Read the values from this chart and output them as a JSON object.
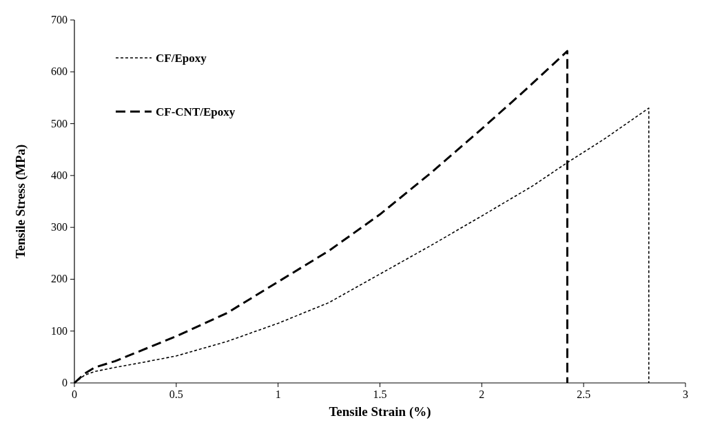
{
  "chart_data": {
    "type": "line",
    "xlabel": "Tensile Strain (%)",
    "ylabel": "Tensile Stress (MPa)",
    "xlim": [
      0,
      3
    ],
    "xticks": [
      0,
      0.5,
      1,
      1.5,
      2,
      2.5,
      3
    ],
    "ylim": [
      0,
      700
    ],
    "yticks": [
      0,
      100,
      200,
      300,
      400,
      500,
      600,
      700
    ],
    "grid": false,
    "legend": "top left",
    "marker": "none",
    "series": [
      {
        "name": "CF/Epoxy",
        "color": "#000000",
        "line_style": "dotted",
        "x": [
          0,
          0.05,
          0.1,
          0.2,
          0.3,
          0.5,
          0.75,
          1,
          1.25,
          1.5,
          1.75,
          2,
          2.25,
          2.42,
          2.6,
          2.82,
          2.82
        ],
        "values": [
          0,
          15,
          22,
          30,
          37,
          52,
          80,
          115,
          155,
          210,
          265,
          322,
          380,
          425,
          470,
          530,
          0
        ]
      },
      {
        "name": "CF-CNT/Epoxy",
        "color": "#000000",
        "line_style": "dashed",
        "x": [
          0,
          0.05,
          0.1,
          0.2,
          0.5,
          0.75,
          1,
          1.25,
          1.5,
          1.75,
          2,
          2.2,
          2.42,
          2.42
        ],
        "values": [
          0,
          18,
          30,
          42,
          90,
          135,
          195,
          255,
          325,
          405,
          490,
          560,
          640,
          0
        ]
      }
    ]
  }
}
